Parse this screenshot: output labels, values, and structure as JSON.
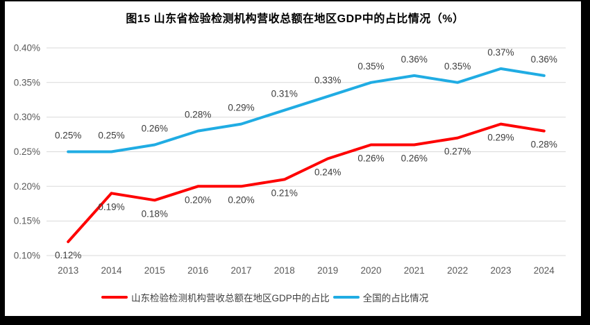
{
  "chart_data": {
    "type": "line",
    "title": "图15  山东省检验检测机构营收总额在地区GDP中的占比情况（%）",
    "categories": [
      "2013",
      "2014",
      "2015",
      "2016",
      "2017",
      "2018",
      "2019",
      "2020",
      "2021",
      "2022",
      "2023",
      "2024"
    ],
    "series": [
      {
        "name": "山东检验检测机构营收总额在地区GDP中的占比",
        "color": "#fe0000",
        "values": [
          0.12,
          0.19,
          0.18,
          0.2,
          0.2,
          0.21,
          0.24,
          0.26,
          0.26,
          0.27,
          0.29,
          0.28
        ],
        "labels": [
          "0.12%",
          "0.19%",
          "0.18%",
          "0.20%",
          "0.20%",
          "0.21%",
          "0.24%",
          "0.26%",
          "0.26%",
          "0.27%",
          "0.29%",
          "0.28%"
        ],
        "label_position": "below"
      },
      {
        "name": "全国的占比情况",
        "color": "#20ace3",
        "values": [
          0.25,
          0.25,
          0.26,
          0.28,
          0.29,
          0.31,
          0.33,
          0.35,
          0.36,
          0.35,
          0.37,
          0.36
        ],
        "labels": [
          "0.25%",
          "0.25%",
          "0.26%",
          "0.28%",
          "0.29%",
          "0.31%",
          "0.33%",
          "0.35%",
          "0.36%",
          "0.35%",
          "0.37%",
          "0.36%"
        ],
        "label_position": "above"
      }
    ],
    "y_axis": {
      "min": 0.1,
      "max": 0.4,
      "tick_step": 0.05,
      "ticks": [
        {
          "value": 0.4,
          "label": "0.40%"
        },
        {
          "value": 0.35,
          "label": "0.35%"
        },
        {
          "value": 0.3,
          "label": "0.30%"
        },
        {
          "value": 0.25,
          "label": "0.25%"
        },
        {
          "value": 0.2,
          "label": "0.20%"
        },
        {
          "value": 0.15,
          "label": "0.15%"
        },
        {
          "value": 0.1,
          "label": "0.10%"
        }
      ]
    },
    "grid": true,
    "legend_position": "bottom"
  },
  "colors": {
    "grid": "#d9d9d9",
    "axis_text": "#595959",
    "data_label": "#3b3b3b",
    "title": "#000000",
    "frame": "#000000",
    "background": "#ffffff"
  }
}
